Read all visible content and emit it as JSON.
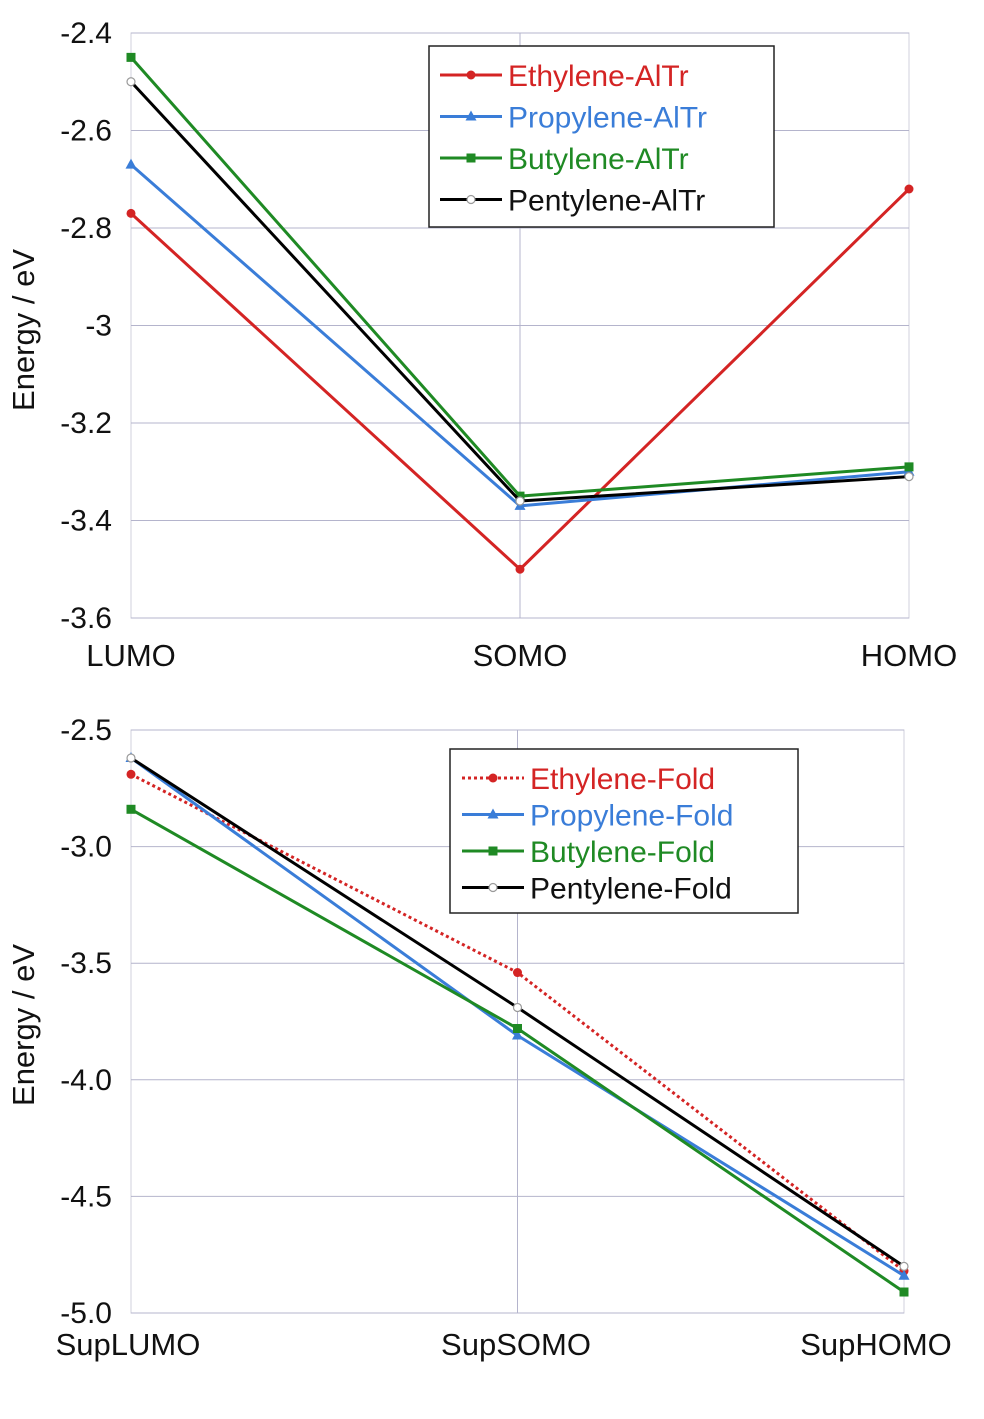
{
  "chart_data": [
    {
      "type": "line",
      "categories": [
        "LUMO",
        "SOMO",
        "HOMO"
      ],
      "ylabel": "Energy / eV",
      "ylim": [
        -3.6,
        -2.4
      ],
      "yticks": [
        -2.4,
        -2.6,
        -2.8,
        -3,
        -3.2,
        -3.4,
        -3.6
      ],
      "ytick_labels": [
        "-2.4",
        "-2.6",
        "-2.8",
        "-3",
        "-3.2",
        "-3.4",
        "-3.6"
      ],
      "grid": true,
      "legend_position": "top-right",
      "series": [
        {
          "name": "Ethylene-AlTr",
          "values": [
            -2.77,
            -3.5,
            -2.72
          ],
          "color": "#d42424",
          "marker": "circle",
          "dash": "solid"
        },
        {
          "name": "Propylene-AlTr",
          "values": [
            -2.67,
            -3.37,
            -3.3
          ],
          "color": "#3a7dd8",
          "marker": "triangle",
          "dash": "solid"
        },
        {
          "name": "Butylene-AlTr",
          "values": [
            -2.45,
            -3.35,
            -3.29
          ],
          "color": "#1f8a24",
          "marker": "square",
          "dash": "solid"
        },
        {
          "name": "Pentylene-AlTr",
          "values": [
            -2.5,
            -3.36,
            -3.31
          ],
          "color": "#000000",
          "marker": "open-circle",
          "dash": "solid"
        }
      ]
    },
    {
      "type": "line",
      "categories": [
        "SupLUMO",
        "SupSOMO",
        "SupHOMO"
      ],
      "ylabel": "Energy / eV",
      "ylim": [
        -5.0,
        -2.5
      ],
      "yticks": [
        -2.5,
        -3.0,
        -3.5,
        -4.0,
        -4.5,
        -5.0
      ],
      "ytick_labels": [
        "-2.5",
        "-3.0",
        "-3.5",
        "-4.0",
        "-4.5",
        "-5.0"
      ],
      "grid": true,
      "legend_position": "top-right",
      "series": [
        {
          "name": "Ethylene-Fold",
          "values": [
            -2.69,
            -3.54,
            -4.82
          ],
          "color": "#d42424",
          "marker": "circle",
          "dash": "dotted"
        },
        {
          "name": "Propylene-Fold",
          "values": [
            -2.62,
            -3.81,
            -4.84
          ],
          "color": "#3a7dd8",
          "marker": "triangle",
          "dash": "solid"
        },
        {
          "name": "Butylene-Fold",
          "values": [
            -2.84,
            -3.78,
            -4.91
          ],
          "color": "#1f8a24",
          "marker": "square",
          "dash": "solid"
        },
        {
          "name": "Pentylene-Fold",
          "values": [
            -2.62,
            -3.69,
            -4.8
          ],
          "color": "#000000",
          "marker": "open-circle",
          "dash": "solid"
        }
      ]
    }
  ]
}
